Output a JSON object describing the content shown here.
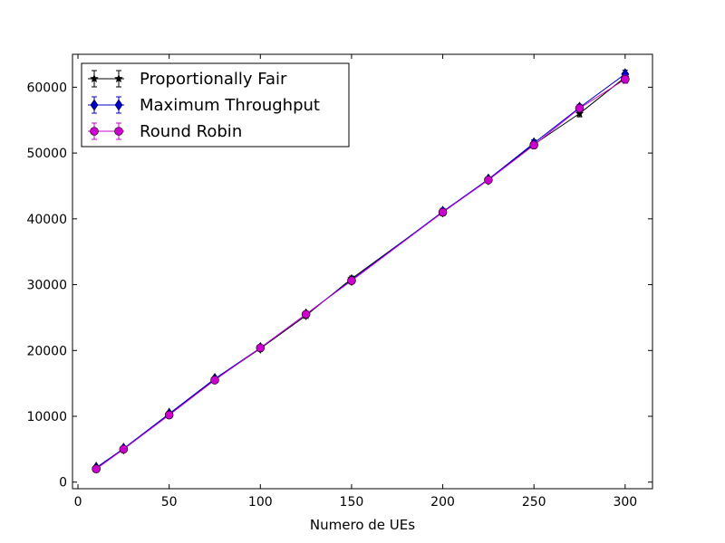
{
  "chart_data": {
    "type": "line",
    "title": "",
    "xlabel": "Numero de UEs",
    "ylabel": "",
    "xlim": [
      -3,
      315
    ],
    "ylim": [
      -1000,
      65000
    ],
    "x_ticks": [
      0,
      50,
      100,
      150,
      200,
      250,
      300
    ],
    "y_ticks": [
      0,
      10000,
      20000,
      30000,
      40000,
      50000,
      60000
    ],
    "grid": false,
    "legend_position": "top-left",
    "x": [
      10,
      25,
      50,
      75,
      100,
      125,
      150,
      200,
      225,
      250,
      275,
      300
    ],
    "series": [
      {
        "name": "Proportionally Fair",
        "color": "#000000",
        "marker": "star",
        "values": [
          2100,
          5000,
          10300,
          15600,
          20300,
          25300,
          30900,
          41000,
          46000,
          51300,
          56000,
          61500
        ],
        "errors": [
          300,
          300,
          300,
          300,
          300,
          300,
          400,
          500,
          300,
          500,
          500,
          600
        ]
      },
      {
        "name": "Maximum Throughput",
        "color": "#0000cc",
        "marker": "diamond",
        "values": [
          2200,
          5100,
          10400,
          15700,
          20400,
          25500,
          30700,
          41100,
          46000,
          51500,
          56900,
          62000
        ],
        "errors": [
          300,
          300,
          300,
          300,
          300,
          300,
          400,
          500,
          300,
          500,
          500,
          600
        ]
      },
      {
        "name": "Round Robin",
        "color": "#cc00cc",
        "marker": "circle",
        "values": [
          2000,
          5000,
          10200,
          15500,
          20400,
          25500,
          30600,
          41000,
          45900,
          51200,
          56800,
          61200
        ],
        "errors": [
          300,
          300,
          300,
          300,
          300,
          300,
          400,
          500,
          300,
          500,
          500,
          600
        ]
      }
    ]
  }
}
